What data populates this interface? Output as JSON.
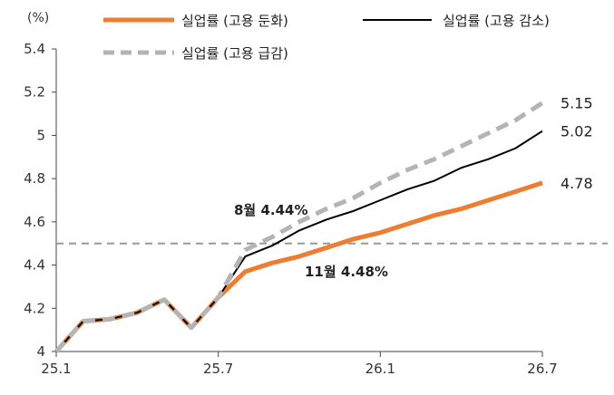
{
  "chart_data": {
    "type": "line",
    "ylabel": "(%)",
    "ylim": [
      4,
      5.4
    ],
    "yticks": [
      "4",
      "4.2",
      "4.4",
      "4.6",
      "4.8",
      "5",
      "5.2",
      "5.4"
    ],
    "x_start": "2025-01",
    "x_end": "2026-07",
    "xtick_labels": [
      "25.1",
      "25.7",
      "26.1",
      "26.7"
    ],
    "legend": [
      "실업률 (고용 둔화)",
      "실업률 (고용 감소)",
      "실업률 (고용 급감)"
    ],
    "series": [
      {
        "name": "실업률 (고용 둔화)",
        "color": "#ED7D31",
        "style": "solid-thick",
        "x": [
          "2025-01",
          "2025-02",
          "2025-03",
          "2025-04",
          "2025-05",
          "2025-06",
          "2025-07",
          "2025-08",
          "2025-09",
          "2025-10",
          "2025-11",
          "2025-12",
          "2026-01",
          "2026-02",
          "2026-03",
          "2026-04",
          "2026-05",
          "2026-06",
          "2026-07"
        ],
        "y": [
          4.0,
          4.14,
          4.15,
          4.18,
          4.24,
          4.11,
          4.25,
          4.37,
          4.41,
          4.44,
          4.48,
          4.52,
          4.55,
          4.59,
          4.63,
          4.66,
          4.7,
          4.74,
          4.78
        ]
      },
      {
        "name": "실업률 (고용 감소)",
        "color": "#000000",
        "style": "solid-thin",
        "x": [
          "2025-01",
          "2025-02",
          "2025-03",
          "2025-04",
          "2025-05",
          "2025-06",
          "2025-07",
          "2025-08",
          "2025-09",
          "2025-10",
          "2025-11",
          "2025-12",
          "2026-01",
          "2026-02",
          "2026-03",
          "2026-04",
          "2026-05",
          "2026-06",
          "2026-07"
        ],
        "y": [
          4.0,
          4.14,
          4.15,
          4.18,
          4.24,
          4.11,
          4.25,
          4.44,
          4.49,
          4.56,
          4.61,
          4.65,
          4.7,
          4.75,
          4.79,
          4.85,
          4.89,
          4.94,
          5.02
        ]
      },
      {
        "name": "실업률 (고용 급감)",
        "color": "#B4B4B4",
        "style": "dashed-thick",
        "x": [
          "2025-01",
          "2025-02",
          "2025-03",
          "2025-04",
          "2025-05",
          "2025-06",
          "2025-07",
          "2025-08",
          "2025-09",
          "2025-10",
          "2025-11",
          "2025-12",
          "2026-01",
          "2026-02",
          "2026-03",
          "2026-04",
          "2026-05",
          "2026-06",
          "2026-07"
        ],
        "y": [
          4.0,
          4.14,
          4.15,
          4.18,
          4.24,
          4.11,
          4.25,
          4.47,
          4.53,
          4.6,
          4.66,
          4.71,
          4.78,
          4.84,
          4.89,
          4.95,
          5.01,
          5.07,
          5.15
        ]
      }
    ],
    "reference_line": {
      "y": 4.5,
      "color": "#999999",
      "style": "dashed"
    },
    "end_labels": [
      "5.15",
      "5.02",
      "4.78"
    ],
    "annotations": [
      {
        "text": "8월 4.44%"
      },
      {
        "text": "11월 4.48%"
      }
    ]
  }
}
